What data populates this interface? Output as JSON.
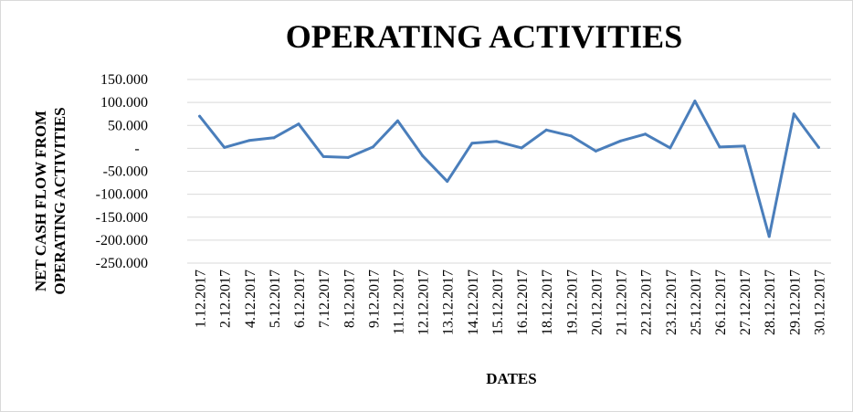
{
  "chart_data": {
    "type": "line",
    "title": "OPERATING ACTIVITIES",
    "xlabel": "DATES",
    "ylabel_lines": [
      "NET CASH FLOW FROM",
      "OPERATING ACTIVITIES"
    ],
    "ylim": [
      -250000,
      150000
    ],
    "yticks": [
      150000,
      100000,
      50000,
      0,
      -50000,
      -100000,
      -150000,
      -200000,
      -250000
    ],
    "ytick_labels": [
      "150.000",
      "100.000",
      "50.000",
      "-",
      "-50.000",
      "-100.000",
      "-150.000",
      "-200.000",
      "-250.000"
    ],
    "grid": true,
    "legend": "none",
    "color": "#4a7ebb",
    "categories": [
      "1.12.2017",
      "2.12.2017",
      "4.12.2017",
      "5.12.2017",
      "6.12.2017",
      "7.12.2017",
      "8.12.2017",
      "9.12.2017",
      "11.12.2017",
      "12.12.2017",
      "13.12.2017",
      "14.12.2017",
      "15.12.2017",
      "16.12.2017",
      "18.12.2017",
      "19.12.2017",
      "20.12.2017",
      "21.12.2017",
      "22.12.2017",
      "23.12.2017",
      "25.12.2017",
      "26.12.2017",
      "27.12.2017",
      "28.12.2017",
      "29.12.2017",
      "30.12.2017"
    ],
    "values": [
      70000,
      2000,
      17000,
      23000,
      53000,
      -18000,
      -20000,
      3000,
      60000,
      -16000,
      -72000,
      11000,
      15000,
      1000,
      40000,
      27000,
      -6000,
      16000,
      31000,
      1000,
      103000,
      3000,
      5000,
      -192000,
      75000,
      2000
    ]
  }
}
